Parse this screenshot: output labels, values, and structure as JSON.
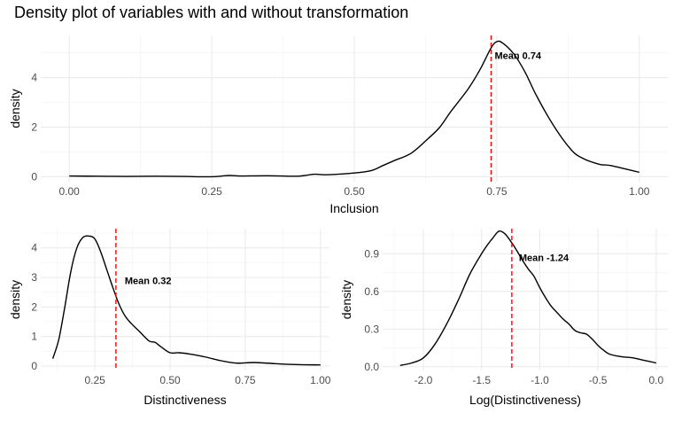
{
  "title": "Density plot of variables with and without transformation",
  "chart_data": [
    {
      "type": "line",
      "xlabel": "Inclusion",
      "ylabel": "density",
      "xlim": [
        -0.05,
        1.05
      ],
      "ylim": [
        -0.2,
        5.7
      ],
      "xticks": [
        0,
        0.25,
        0.5,
        0.75,
        1.0
      ],
      "xtick_labels": [
        "0.00",
        "0.25",
        "0.50",
        "0.75",
        "1.00"
      ],
      "yticks": [
        0,
        2,
        4
      ],
      "ytick_labels": [
        "0",
        "2",
        "4"
      ],
      "mean": 0.74,
      "mean_label": "Mean 0.74",
      "mean_label_y": 4.9,
      "grid": true,
      "x": [
        0.0,
        0.05,
        0.1,
        0.15,
        0.2,
        0.25,
        0.28,
        0.3,
        0.35,
        0.4,
        0.43,
        0.45,
        0.5,
        0.53,
        0.55,
        0.57,
        0.6,
        0.63,
        0.65,
        0.67,
        0.7,
        0.72,
        0.74,
        0.75,
        0.76,
        0.78,
        0.8,
        0.82,
        0.85,
        0.88,
        0.9,
        0.93,
        0.95,
        1.0
      ],
      "y": [
        0.03,
        0.02,
        0.01,
        0.02,
        0.01,
        0.0,
        0.05,
        0.03,
        0.04,
        0.02,
        0.1,
        0.08,
        0.15,
        0.25,
        0.45,
        0.65,
        0.95,
        1.55,
        2.0,
        2.65,
        3.55,
        4.3,
        5.2,
        5.45,
        5.4,
        4.95,
        4.2,
        3.25,
        2.05,
        1.1,
        0.75,
        0.5,
        0.45,
        0.18
      ]
    },
    {
      "type": "line",
      "xlabel": "Distinctiveness",
      "ylabel": "density",
      "xlim": [
        0.07,
        1.03
      ],
      "ylim": [
        -0.15,
        4.65
      ],
      "xticks": [
        0.25,
        0.5,
        0.75,
        1.0
      ],
      "xtick_labels": [
        "0.25",
        "0.50",
        "0.75",
        "1.00"
      ],
      "yticks": [
        0,
        1,
        2,
        3,
        4
      ],
      "ytick_labels": [
        "0",
        "1",
        "2",
        "3",
        "4"
      ],
      "mean": 0.32,
      "mean_label": "Mean 0.32",
      "mean_label_y": 2.9,
      "grid": true,
      "x": [
        0.11,
        0.13,
        0.15,
        0.17,
        0.19,
        0.21,
        0.23,
        0.25,
        0.27,
        0.29,
        0.31,
        0.33,
        0.35,
        0.37,
        0.4,
        0.43,
        0.45,
        0.47,
        0.5,
        0.53,
        0.57,
        0.62,
        0.67,
        0.72,
        0.78,
        0.85,
        0.92,
        1.0
      ],
      "y": [
        0.25,
        0.9,
        2.0,
        3.2,
        4.0,
        4.35,
        4.4,
        4.3,
        3.85,
        3.25,
        2.65,
        2.1,
        1.7,
        1.45,
        1.15,
        0.85,
        0.8,
        0.65,
        0.45,
        0.45,
        0.4,
        0.3,
        0.18,
        0.1,
        0.12,
        0.08,
        0.05,
        0.04
      ]
    },
    {
      "type": "line",
      "xlabel": "Log(Distinctiveness)",
      "ylabel": "density",
      "xlim": [
        -2.35,
        0.1
      ],
      "ylim": [
        -0.03,
        1.1
      ],
      "xticks": [
        -2.0,
        -1.5,
        -1.0,
        -0.5,
        0.0
      ],
      "xtick_labels": [
        "-2.0",
        "-1.5",
        "-1.0",
        "-0.5",
        "0.0"
      ],
      "yticks": [
        0,
        0.3,
        0.6,
        0.9
      ],
      "ytick_labels": [
        "0.0",
        "0.3",
        "0.6",
        "0.9"
      ],
      "mean": -1.24,
      "mean_label": "Mean -1.24",
      "mean_label_y": 0.87,
      "grid": true,
      "x": [
        -2.2,
        -2.1,
        -2.0,
        -1.9,
        -1.8,
        -1.7,
        -1.6,
        -1.5,
        -1.45,
        -1.4,
        -1.35,
        -1.3,
        -1.25,
        -1.2,
        -1.15,
        -1.1,
        -1.05,
        -1.0,
        -0.95,
        -0.9,
        -0.85,
        -0.8,
        -0.75,
        -0.7,
        -0.65,
        -0.6,
        -0.55,
        -0.5,
        -0.45,
        -0.4,
        -0.3,
        -0.2,
        -0.1,
        0.0
      ],
      "y": [
        0.01,
        0.03,
        0.07,
        0.18,
        0.34,
        0.53,
        0.74,
        0.9,
        0.97,
        1.03,
        1.08,
        1.06,
        1.0,
        0.93,
        0.85,
        0.78,
        0.72,
        0.63,
        0.55,
        0.48,
        0.43,
        0.38,
        0.34,
        0.29,
        0.27,
        0.26,
        0.22,
        0.17,
        0.13,
        0.1,
        0.08,
        0.07,
        0.05,
        0.03
      ]
    }
  ]
}
